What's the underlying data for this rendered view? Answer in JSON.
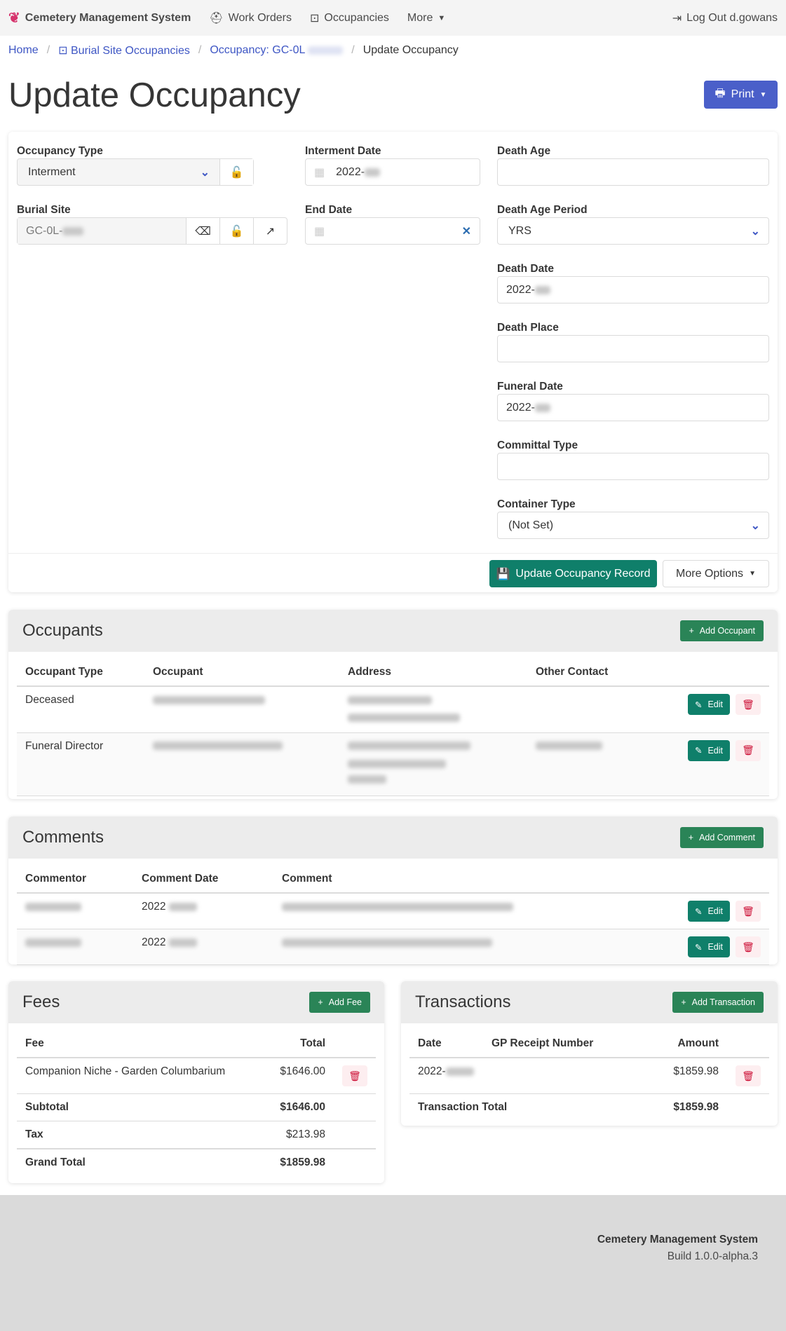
{
  "nav": {
    "brand": "Cemetery Management System",
    "work_orders": "Work Orders",
    "occupancies": "Occupancies",
    "more": "More",
    "logout": "Log Out d.gowans"
  },
  "breadcrumb": {
    "home": "Home",
    "occupancies": "Burial Site Occupancies",
    "occupancy": "Occupancy: GC-0L",
    "current": "Update Occupancy"
  },
  "page_title": "Update Occupancy",
  "print_label": "Print",
  "form": {
    "occupancy_type": {
      "label": "Occupancy Type",
      "value": "Interment"
    },
    "burial_site": {
      "label": "Burial Site",
      "value": "GC-0L-"
    },
    "interment_date": {
      "label": "Interment Date",
      "value": "2022-"
    },
    "end_date": {
      "label": "End Date",
      "value": ""
    },
    "death_age": {
      "label": "Death Age",
      "value": ""
    },
    "death_age_period": {
      "label": "Death Age Period",
      "value": "YRS"
    },
    "death_date": {
      "label": "Death Date",
      "value": "2022-"
    },
    "death_place": {
      "label": "Death Place",
      "value": ""
    },
    "funeral_date": {
      "label": "Funeral Date",
      "value": "2022-"
    },
    "committal_type": {
      "label": "Committal Type",
      "value": ""
    },
    "container_type": {
      "label": "Container Type",
      "value": "(Not Set)"
    },
    "update_button": "Update Occupancy Record",
    "more_options": "More Options"
  },
  "occupants": {
    "title": "Occupants",
    "add": "Add Occupant",
    "columns": [
      "Occupant Type",
      "Occupant",
      "Address",
      "Other Contact"
    ],
    "rows": [
      {
        "type": "Deceased"
      },
      {
        "type": "Funeral Director"
      }
    ],
    "edit": "Edit"
  },
  "comments": {
    "title": "Comments",
    "add": "Add Comment",
    "columns": [
      "Commentor",
      "Comment Date",
      "Comment"
    ],
    "rows": [
      {
        "date": "2022"
      },
      {
        "date": "2022"
      }
    ],
    "edit": "Edit"
  },
  "fees": {
    "title": "Fees",
    "add": "Add Fee",
    "columns": [
      "Fee",
      "Total"
    ],
    "rows": [
      {
        "fee": "Companion Niche - Garden Columbarium",
        "total": "$1646.00"
      }
    ],
    "subtotal_label": "Subtotal",
    "subtotal": "$1646.00",
    "tax_label": "Tax",
    "tax": "$213.98",
    "grand_total_label": "Grand Total",
    "grand_total": "$1859.98"
  },
  "transactions": {
    "title": "Transactions",
    "add": "Add Transaction",
    "columns": [
      "Date",
      "GP Receipt Number",
      "Amount"
    ],
    "rows": [
      {
        "date": "2022-",
        "amount": "$1859.98"
      }
    ],
    "total_label": "Transaction Total",
    "total": "$1859.98"
  },
  "footer": {
    "app": "Cemetery Management System",
    "build": "Build 1.0.0-alpha.3"
  },
  "colors": {
    "primary": "#3e56c4",
    "success": "#2a8457",
    "edit": "#0f7f6a",
    "danger": "#cc0f35"
  }
}
